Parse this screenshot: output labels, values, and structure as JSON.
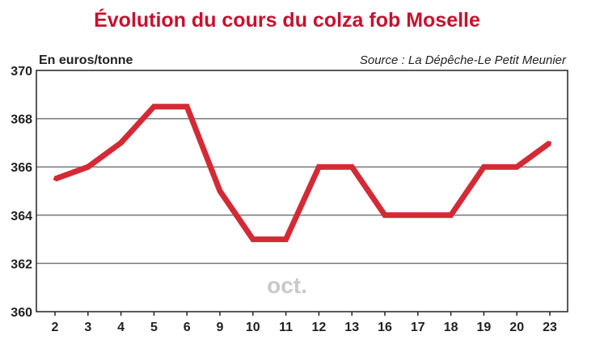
{
  "chart_data": {
    "type": "line",
    "title": "Évolution du cours du colza fob Moselle",
    "ylabel": "En euros/tonne",
    "source": "Source : La Dépêche-Le Petit Meunier",
    "month_label": "oct.",
    "categories": [
      "2",
      "3",
      "4",
      "5",
      "6",
      "9",
      "10",
      "11",
      "12",
      "13",
      "16",
      "17",
      "18",
      "19",
      "20",
      "23"
    ],
    "values": [
      365.5,
      366,
      367,
      368.5,
      368.5,
      365,
      363,
      363,
      366,
      366,
      364,
      364,
      364,
      366,
      366,
      367
    ],
    "ylim": [
      360,
      370
    ],
    "yticks": [
      "360",
      "362",
      "364",
      "366",
      "368",
      "370"
    ],
    "grid": true,
    "colors": {
      "line": "#d42a35",
      "title": "#c8102e",
      "grid": "#7a7a7a",
      "axis": "#222222",
      "month": "#c9c9c9"
    }
  }
}
